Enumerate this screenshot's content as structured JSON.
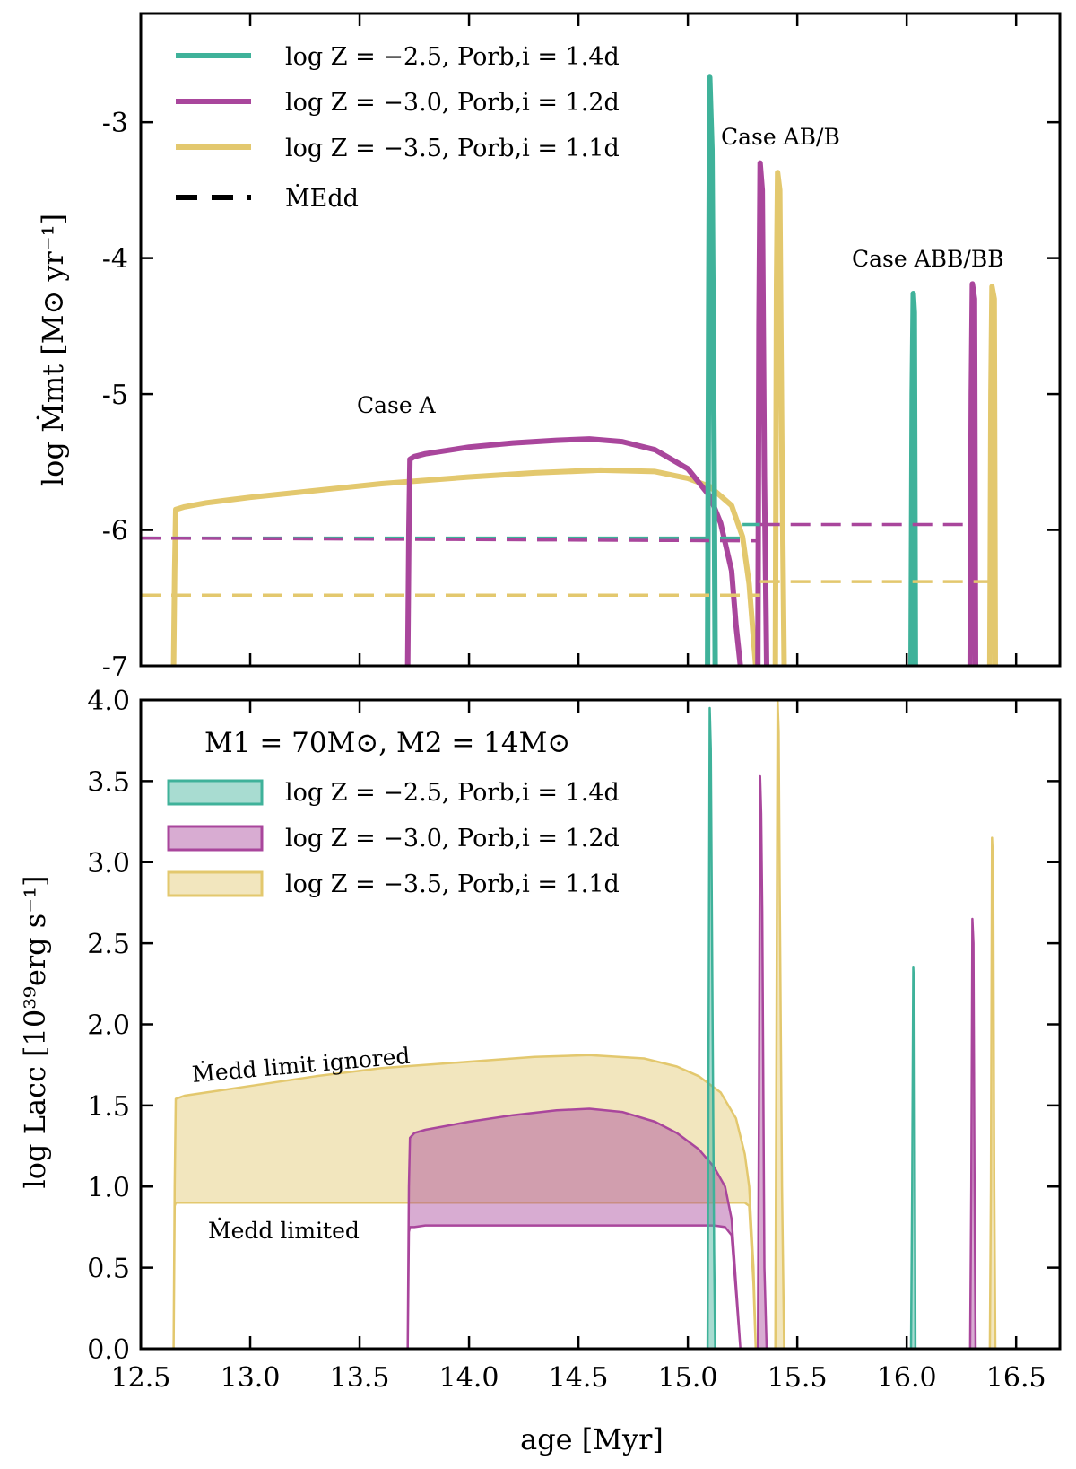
{
  "colors": {
    "teal": "#3fb29a",
    "magenta": "#a9469c",
    "gold": "#e3c86e",
    "black": "#000000"
  },
  "chart_data": [
    {
      "type": "line",
      "ylabel": "log Ṁmt [M⊙ yr⁻¹]",
      "xlim": [
        12.5,
        16.7
      ],
      "ylim": [
        -7,
        -2.2
      ],
      "yticks": [
        -7,
        -6,
        -5,
        -4,
        -3
      ],
      "ytick_labels": [
        "-7",
        "-6",
        "-5",
        "-4",
        "-3"
      ],
      "legend": [
        {
          "label": "log Z = −2.5, Porb,i = 1.4d",
          "color": "teal",
          "style": "solid"
        },
        {
          "label": "log Z = −3.0, Porb,i = 1.2d",
          "color": "magenta",
          "style": "solid"
        },
        {
          "label": "log Z = −3.5, Porb,i = 1.1d",
          "color": "gold",
          "style": "solid"
        },
        {
          "label": "ṀEdd",
          "color": "black",
          "style": "dashed"
        }
      ],
      "annotations": [
        {
          "text": "Case A",
          "x": 14.2,
          "y": -5.07
        },
        {
          "text": "Case AB/B",
          "x": 15.4,
          "y": -3.1
        },
        {
          "text": "Case ABB/BB",
          "x": 16.15,
          "y": -4.0
        }
      ],
      "series": [
        {
          "name": "log Z = −3.5, Porb,i = 1.1d",
          "color": "gold",
          "style": "solid",
          "x": [
            12.65,
            12.655,
            12.66,
            12.7,
            12.8,
            13.0,
            13.3,
            13.6,
            14.0,
            14.3,
            14.6,
            14.85,
            15.0,
            15.1,
            15.2,
            15.25,
            15.28,
            15.3,
            15.31
          ],
          "y": [
            -7.0,
            -6.3,
            -5.85,
            -5.83,
            -5.8,
            -5.76,
            -5.71,
            -5.66,
            -5.61,
            -5.58,
            -5.56,
            -5.57,
            -5.62,
            -5.68,
            -5.82,
            -6.05,
            -6.4,
            -6.8,
            -7.0
          ]
        },
        {
          "name": "log Z = −3.5, Porb,i = 1.1d",
          "color": "gold",
          "style": "solid",
          "x": [
            15.4,
            15.405,
            15.41,
            15.42,
            15.43,
            15.44
          ],
          "y": [
            -7.0,
            -4.2,
            -3.37,
            -3.5,
            -5.5,
            -7.0
          ]
        },
        {
          "name": "log Z = −3.5, Porb,i = 1.1d",
          "color": "gold",
          "style": "solid",
          "x": [
            16.38,
            16.385,
            16.39,
            16.4,
            16.405
          ],
          "y": [
            -7.0,
            -5.0,
            -4.21,
            -4.3,
            -7.0
          ]
        },
        {
          "name": "log Z = −3.0, Porb,i = 1.2d",
          "color": "magenta",
          "style": "solid",
          "x": [
            13.72,
            13.725,
            13.73,
            13.75,
            13.8,
            14.0,
            14.2,
            14.4,
            14.55,
            14.7,
            14.85,
            15.0,
            15.1,
            15.15,
            15.2,
            15.22,
            15.24
          ],
          "y": [
            -7.0,
            -6.0,
            -5.48,
            -5.46,
            -5.44,
            -5.39,
            -5.36,
            -5.34,
            -5.33,
            -5.35,
            -5.41,
            -5.55,
            -5.75,
            -5.95,
            -6.3,
            -6.7,
            -7.0
          ]
        },
        {
          "name": "log Z = −3.0, Porb,i = 1.2d",
          "color": "magenta",
          "style": "solid",
          "x": [
            15.32,
            15.325,
            15.33,
            15.34,
            15.35,
            15.36
          ],
          "y": [
            -7.0,
            -4.5,
            -3.3,
            -3.5,
            -5.6,
            -7.0
          ]
        },
        {
          "name": "log Z = −3.0, Porb,i = 1.2d",
          "color": "magenta",
          "style": "solid",
          "x": [
            16.29,
            16.295,
            16.3,
            16.31,
            16.315
          ],
          "y": [
            -7.0,
            -5.0,
            -4.19,
            -4.3,
            -7.0
          ]
        },
        {
          "name": "log Z = −2.5, Porb,i = 1.4d",
          "color": "teal",
          "style": "solid",
          "x": [
            15.09,
            15.095,
            15.1,
            15.11,
            15.12,
            15.125
          ],
          "y": [
            -7.0,
            -4.5,
            -2.67,
            -3.2,
            -5.5,
            -7.0
          ]
        },
        {
          "name": "log Z = −2.5, Porb,i = 1.4d",
          "color": "teal",
          "style": "solid",
          "x": [
            16.02,
            16.025,
            16.03,
            16.035,
            16.04
          ],
          "y": [
            -7.0,
            -5.0,
            -4.26,
            -4.4,
            -7.0
          ]
        },
        {
          "name": "ṀEdd (log Z = −2.5)",
          "color": "teal",
          "style": "dashed",
          "x": [
            12.5,
            15.28
          ],
          "y": [
            -6.06,
            -6.06
          ]
        },
        {
          "name": "ṀEdd (log Z = −2.5)",
          "color": "teal",
          "style": "dashed",
          "x": [
            15.25,
            15.33
          ],
          "y": [
            -5.96,
            -5.96
          ]
        },
        {
          "name": "ṀEdd (log Z = −3.0)",
          "color": "magenta",
          "style": "dashed",
          "x": [
            12.5,
            15.33
          ],
          "y": [
            -6.06,
            -6.08
          ]
        },
        {
          "name": "ṀEdd (log Z = −3.0)",
          "color": "magenta",
          "style": "dashed",
          "x": [
            15.33,
            16.3
          ],
          "y": [
            -5.96,
            -5.96
          ]
        },
        {
          "name": "ṀEdd (log Z = −3.5)",
          "color": "gold",
          "style": "dashed",
          "x": [
            12.5,
            15.33
          ],
          "y": [
            -6.48,
            -6.48
          ]
        },
        {
          "name": "ṀEdd (log Z = −3.5)",
          "color": "gold",
          "style": "dashed",
          "x": [
            15.33,
            16.4
          ],
          "y": [
            -6.38,
            -6.38
          ]
        }
      ]
    },
    {
      "type": "area",
      "title": "M1 = 70M⊙, M2 = 14M⊙",
      "xlabel": "age [Myr]",
      "ylabel": "log Lacc [10³⁹erg s⁻¹]",
      "xlim": [
        12.5,
        16.7
      ],
      "ylim": [
        0.0,
        4.0
      ],
      "xticks": [
        12.5,
        13.0,
        13.5,
        14.0,
        14.5,
        15.0,
        15.5,
        16.0,
        16.5
      ],
      "xtick_labels": [
        "12.5",
        "13.0",
        "13.5",
        "14.0",
        "14.5",
        "15.0",
        "15.5",
        "16.0",
        "16.5"
      ],
      "yticks": [
        0.0,
        0.5,
        1.0,
        1.5,
        2.0,
        2.5,
        3.0,
        3.5,
        4.0
      ],
      "ytick_labels": [
        "0.0",
        "0.5",
        "1.0",
        "1.5",
        "2.0",
        "2.5",
        "3.0",
        "3.5",
        "4.0"
      ],
      "legend": [
        {
          "label": "log Z = −2.5, Porb,i = 1.4d",
          "color": "teal"
        },
        {
          "label": "log Z = −3.0, Porb,i = 1.2d",
          "color": "magenta"
        },
        {
          "label": "log Z = −3.5, Porb,i = 1.1d",
          "color": "gold"
        }
      ],
      "annotations": [
        {
          "text": "Ṁedd limit ignored",
          "x": 13.2,
          "y": 1.78,
          "rotation": -5
        },
        {
          "text": "Ṁedd limited",
          "x": 13.3,
          "y": 0.74,
          "rotation": 0
        }
      ],
      "series": [
        {
          "name": "log Z = −3.5, Porb,i = 1.1d",
          "color": "gold",
          "x": [
            12.65,
            12.655,
            12.66,
            12.7,
            12.8,
            13.0,
            13.3,
            13.6,
            14.0,
            14.3,
            14.55,
            14.8,
            14.95,
            15.05,
            15.15,
            15.22,
            15.26,
            15.28,
            15.3,
            15.31
          ],
          "upper": [
            0.0,
            1.0,
            1.54,
            1.56,
            1.58,
            1.62,
            1.68,
            1.73,
            1.77,
            1.8,
            1.81,
            1.79,
            1.74,
            1.68,
            1.58,
            1.42,
            1.2,
            1.0,
            0.5,
            0.0
          ],
          "lower": [
            0.0,
            0.88,
            0.9,
            0.9,
            0.9,
            0.9,
            0.9,
            0.9,
            0.9,
            0.9,
            0.9,
            0.9,
            0.9,
            0.9,
            0.9,
            0.9,
            0.9,
            0.88,
            0.4,
            0.0
          ]
        },
        {
          "name": "log Z = −3.0, Porb,i = 1.2d",
          "color": "magenta",
          "x": [
            13.72,
            13.725,
            13.73,
            13.75,
            13.8,
            14.0,
            14.2,
            14.4,
            14.55,
            14.7,
            14.85,
            14.95,
            15.05,
            15.12,
            15.17,
            15.2,
            15.22,
            15.24
          ],
          "upper": [
            0.0,
            1.0,
            1.3,
            1.33,
            1.35,
            1.4,
            1.44,
            1.47,
            1.48,
            1.46,
            1.4,
            1.33,
            1.23,
            1.12,
            1.0,
            0.8,
            0.4,
            0.0
          ],
          "lower": [
            0.0,
            0.72,
            0.75,
            0.75,
            0.76,
            0.76,
            0.76,
            0.76,
            0.76,
            0.76,
            0.76,
            0.76,
            0.76,
            0.76,
            0.75,
            0.7,
            0.35,
            0.0
          ]
        },
        {
          "name": "log Z = −3.5 spike",
          "color": "gold",
          "x": [
            15.4,
            15.405,
            15.41,
            15.415,
            15.42,
            15.43,
            15.44
          ],
          "upper": [
            0.0,
            2.0,
            4.0,
            3.8,
            2.8,
            1.0,
            0.0
          ]
        },
        {
          "name": "log Z = −3.5 spike",
          "color": "gold",
          "x": [
            16.38,
            16.385,
            16.39,
            16.395,
            16.4,
            16.405
          ],
          "upper": [
            0.0,
            1.0,
            3.15,
            3.0,
            1.0,
            0.0
          ]
        },
        {
          "name": "log Z = −3.0 spike",
          "color": "magenta",
          "x": [
            15.32,
            15.325,
            15.33,
            15.335,
            15.34,
            15.35,
            15.36
          ],
          "upper": [
            0.0,
            1.5,
            3.53,
            3.3,
            2.7,
            0.5,
            0.0
          ]
        },
        {
          "name": "log Z = −3.0 spike",
          "color": "magenta",
          "x": [
            16.29,
            16.295,
            16.3,
            16.305,
            16.31,
            16.315
          ],
          "upper": [
            0.0,
            1.0,
            2.65,
            2.5,
            1.0,
            0.0
          ]
        },
        {
          "name": "log Z = −2.5 spike",
          "color": "teal",
          "x": [
            15.09,
            15.095,
            15.1,
            15.105,
            15.11,
            15.12,
            15.125
          ],
          "upper": [
            0.0,
            2.0,
            3.95,
            3.7,
            2.6,
            0.6,
            0.0
          ]
        },
        {
          "name": "log Z = −2.5 spike",
          "color": "teal",
          "x": [
            16.02,
            16.025,
            16.03,
            16.035,
            16.04
          ],
          "upper": [
            0.0,
            1.0,
            2.35,
            2.2,
            0.0
          ]
        }
      ]
    }
  ]
}
